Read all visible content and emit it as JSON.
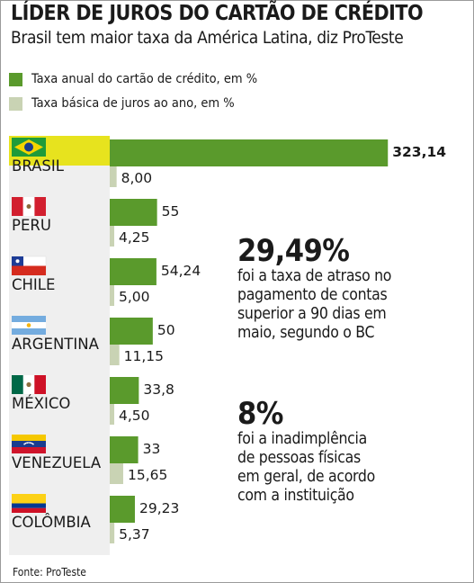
{
  "header": {
    "title": "LÍDER DE JUROS DO CARTÃO DE CRÉDITO",
    "subtitle": "Brasil tem maior taxa da América Latina, diz ProTeste"
  },
  "legend": [
    {
      "label": "Taxa anual do cartão de crédito, em %",
      "color": "#5a9a2c"
    },
    {
      "label": "Taxa básica de juros ao ano, em %",
      "color": "#c9d3b4"
    }
  ],
  "chart_data": {
    "type": "bar",
    "categories": [
      "BRASIL",
      "PERU",
      "CHILE",
      "ARGENTINA",
      "MÉXICO",
      "VENEZUELA",
      "COLÔMBIA"
    ],
    "series": [
      {
        "name": "Taxa anual do cartão de crédito, em %",
        "values": [
          323.14,
          55,
          54.24,
          50,
          33.8,
          33,
          29.23
        ],
        "labels": [
          "323,14",
          "55",
          "54,24",
          "50",
          "33,8",
          "33",
          "29,23"
        ]
      },
      {
        "name": "Taxa básica de juros ao ano, em %",
        "values": [
          8.0,
          4.25,
          5.0,
          11.15,
          4.5,
          15.65,
          5.37
        ],
        "labels": [
          "8,00",
          "4,25",
          "5,00",
          "11,15",
          "4,50",
          "15,65",
          "5,37"
        ]
      }
    ],
    "highlight": "BRASIL",
    "highlight_color": "#e7e31e",
    "colors": {
      "primary": "#5a9a2c",
      "secondary": "#c9d3b4",
      "panel": "#efefef"
    }
  },
  "stats": [
    {
      "value": "29,49%",
      "text": "foi a taxa de atraso no\npagamento de contas\nsuperior a 90 dias em\nmaio, segundo o BC"
    },
    {
      "value": "8%",
      "text": "foi a inadimplência\nde pessoas físicas\nem geral, de acordo\ncom a instituição"
    }
  ],
  "flags": [
    "brazil-flag-icon",
    "peru-flag-icon",
    "chile-flag-icon",
    "argentina-flag-icon",
    "mexico-flag-icon",
    "venezuela-flag-icon",
    "colombia-flag-icon"
  ],
  "source": "Fonte: ProTeste"
}
